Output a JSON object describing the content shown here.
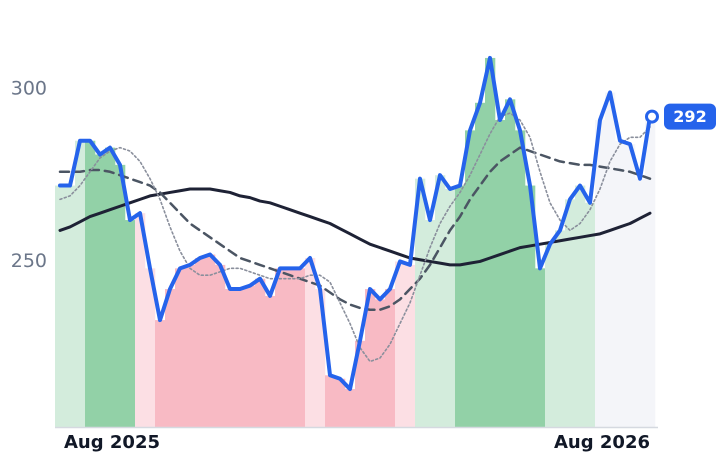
{
  "chart_data": {
    "type": "line",
    "categories": [
      null,
      null,
      null,
      null,
      null,
      "Aug 2025",
      null,
      null,
      null,
      null,
      null,
      null,
      null,
      null,
      null,
      null,
      null,
      null,
      null,
      null,
      null,
      null,
      null,
      null,
      null,
      null,
      null,
      null,
      null,
      null,
      null,
      null,
      null,
      null,
      null,
      null,
      null,
      null,
      null,
      null,
      null,
      null,
      null,
      null,
      null,
      null,
      null,
      null,
      null,
      null,
      null,
      null,
      null,
      null,
      "Aug 2026",
      null,
      null,
      null,
      null,
      null
    ],
    "ylim": [
      202,
      320
    ],
    "yticks": [
      250,
      300
    ],
    "grid": false,
    "band_colors": [
      "#d3ecdc",
      "#d3ecdc",
      "#d3ecdc",
      "#92d1a7",
      "#92d1a7",
      "#92d1a7",
      "#92d1a7",
      "#92d1a7",
      "#fcdfe4",
      "#fcdfe4",
      "#f8bac4",
      "#f8bac4",
      "#f8bac4",
      "#f8bac4",
      "#f8bac4",
      "#f8bac4",
      "#f8bac4",
      "#f8bac4",
      "#f8bac4",
      "#f8bac4",
      "#f8bac4",
      "#f8bac4",
      "#f8bac4",
      "#f8bac4",
      "#f8bac4",
      "#fcdfe4",
      "#fcdfe4",
      "#f8bac4",
      "#f8bac4",
      "#f8bac4",
      "#f8bac4",
      "#f8bac4",
      "#f8bac4",
      "#f8bac4",
      "#fcdfe4",
      "#fcdfe4",
      "#d3ecdc",
      "#d3ecdc",
      "#d3ecdc",
      "#d3ecdc",
      "#92d1a7",
      "#92d1a7",
      "#92d1a7",
      "#92d1a7",
      "#92d1a7",
      "#92d1a7",
      "#92d1a7",
      "#92d1a7",
      "#92d1a7",
      "#d3ecdc",
      "#d3ecdc",
      "#d3ecdc",
      "#d3ecdc",
      "#d3ecdc",
      "#f4f5f9",
      "#f4f5f9",
      "#f4f5f9",
      "#f4f5f9",
      "#f4f5f9",
      "#f4f5f9"
    ],
    "series": [
      {
        "color": "#2563eb",
        "style": "solid",
        "width": 4,
        "values": [
          272,
          272,
          285,
          285,
          281,
          283,
          278,
          262,
          264,
          248,
          233,
          242,
          248,
          249,
          251,
          252,
          249,
          242,
          242,
          243,
          245,
          240,
          248,
          248,
          248,
          251,
          242,
          217,
          216,
          213,
          227,
          242,
          239,
          242,
          250,
          249,
          274,
          262,
          275,
          271,
          272,
          288,
          296,
          309,
          291,
          297,
          288,
          272,
          248,
          255,
          259,
          268,
          272,
          267,
          291,
          299,
          285,
          284,
          274,
          292
        ]
      },
      {
        "color": "#8a8f9c",
        "style": "dotted",
        "width": 1.6,
        "values": [
          268,
          269,
          272,
          276,
          280,
          282,
          283,
          282,
          279,
          274,
          268,
          260,
          253,
          248,
          246,
          246,
          247,
          248,
          248,
          247,
          246,
          245,
          245,
          245,
          245,
          246,
          246,
          244,
          238,
          232,
          225,
          221,
          222,
          226,
          232,
          238,
          246,
          254,
          261,
          266,
          270,
          275,
          281,
          287,
          292,
          293,
          291,
          286,
          276,
          267,
          262,
          259,
          261,
          265,
          271,
          279,
          284,
          286,
          286,
          289
        ]
      },
      {
        "color": "#4b5563",
        "style": "dashed",
        "width": 2.5,
        "values": [
          276,
          276,
          276,
          276.5,
          276.5,
          276,
          275,
          274,
          273,
          272,
          270,
          267,
          264,
          261,
          259,
          257,
          255,
          253,
          251,
          250,
          249,
          248,
          247,
          246,
          245,
          244,
          243,
          241,
          239,
          237.5,
          236.5,
          236,
          236,
          237,
          239,
          242,
          245,
          249,
          254,
          259,
          263,
          268,
          272,
          276,
          279,
          281,
          283,
          282,
          281,
          280,
          279,
          278.5,
          278,
          278,
          277.5,
          277,
          276.5,
          276,
          275,
          274
        ]
      },
      {
        "color": "#1e2235",
        "style": "solid",
        "width": 3,
        "values": [
          259,
          260,
          261.5,
          263,
          264,
          265,
          266,
          267,
          268,
          269,
          269.5,
          270,
          270.5,
          271,
          271,
          271,
          270.5,
          270,
          269,
          268.5,
          267.5,
          267,
          266,
          265,
          264,
          263,
          262,
          261,
          259.5,
          258,
          256.5,
          255,
          254,
          253,
          252,
          251,
          250.5,
          250,
          249.5,
          249,
          249,
          249.5,
          250,
          251,
          252,
          253,
          254,
          254.5,
          255,
          255.5,
          256,
          256.5,
          257,
          257.5,
          258,
          259,
          260,
          261,
          262.5,
          264
        ]
      }
    ]
  }
}
